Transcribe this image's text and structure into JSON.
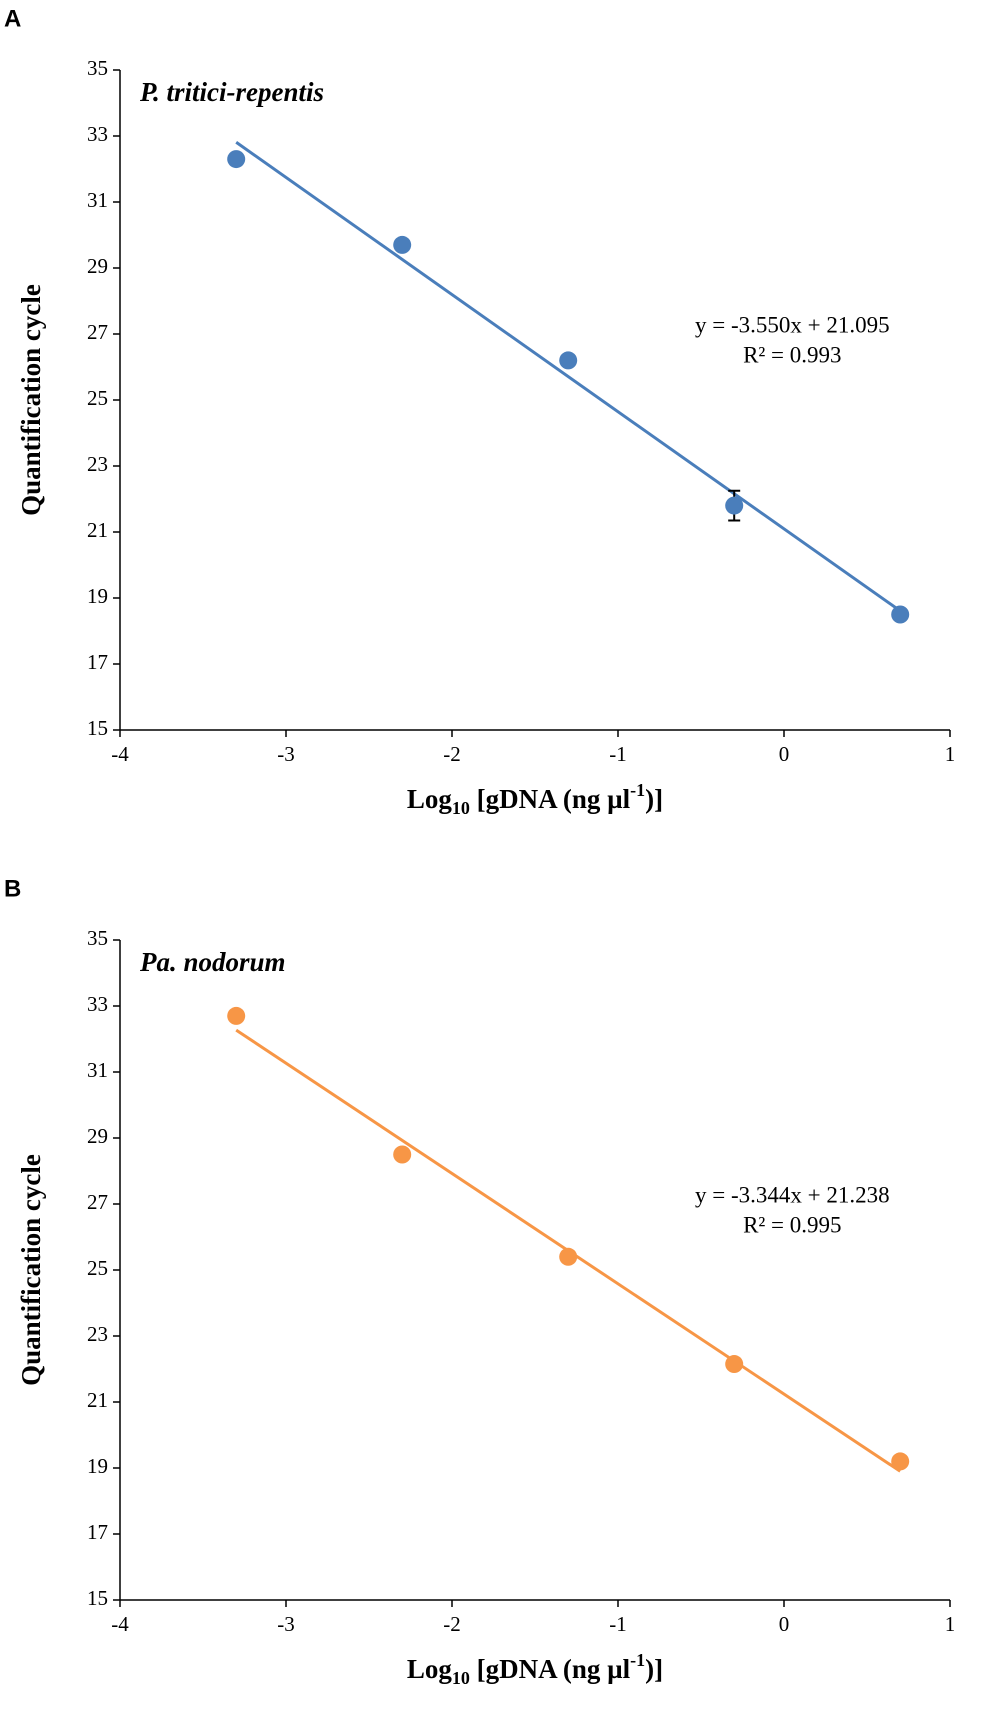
{
  "chart_data": [
    {
      "type": "scatter",
      "panel": "A",
      "title": "P. tritici-repentis",
      "ylabel": "Quantification cycle",
      "xlabel": [
        "Log",
        "10",
        " [gDNA (ng µl",
        "-1",
        ")]"
      ],
      "x": [
        -3.3,
        -2.3,
        -1.3,
        -0.3,
        0.7
      ],
      "series": [
        {
          "name": "P. tritici-repentis",
          "color": "#4a7ebb",
          "values": [
            32.3,
            29.7,
            26.2,
            21.8,
            18.5
          ],
          "errors": [
            null,
            null,
            null,
            0.45,
            null
          ]
        }
      ],
      "trendline": {
        "x": [
          -3.3,
          0.7
        ],
        "values": [
          32.81,
          18.61
        ]
      },
      "annotations": [
        "y = -3.550x + 21.095",
        "R² = 0.993"
      ],
      "xlim": [
        -4,
        1
      ],
      "xticks": [
        -4,
        -3,
        -2,
        -1,
        0,
        1
      ],
      "ylim": [
        15,
        35
      ],
      "yticks": [
        15,
        17,
        19,
        21,
        23,
        25,
        27,
        29,
        31,
        33,
        35
      ]
    },
    {
      "type": "scatter",
      "panel": "B",
      "title": "Pa. nodorum",
      "ylabel": "Quantification cycle",
      "xlabel": [
        "Log",
        "10",
        " [gDNA (ng µl",
        "-1",
        ")]"
      ],
      "x": [
        -3.3,
        -2.3,
        -1.3,
        -0.3,
        0.7
      ],
      "series": [
        {
          "name": "Pa. nodorum",
          "color": "#f79646",
          "values": [
            32.7,
            28.5,
            25.4,
            22.15,
            19.2
          ],
          "errors": [
            null,
            null,
            null,
            null,
            null
          ]
        }
      ],
      "trendline": {
        "x": [
          -3.3,
          0.7
        ],
        "values": [
          32.27,
          18.9
        ]
      },
      "annotations": [
        "y = -3.344x + 21.238",
        "R² = 0.995"
      ],
      "xlim": [
        -4,
        1
      ],
      "xticks": [
        -4,
        -3,
        -2,
        -1,
        0,
        1
      ],
      "ylim": [
        15,
        35
      ],
      "yticks": [
        15,
        17,
        19,
        21,
        23,
        25,
        27,
        29,
        31,
        33,
        35
      ]
    }
  ]
}
